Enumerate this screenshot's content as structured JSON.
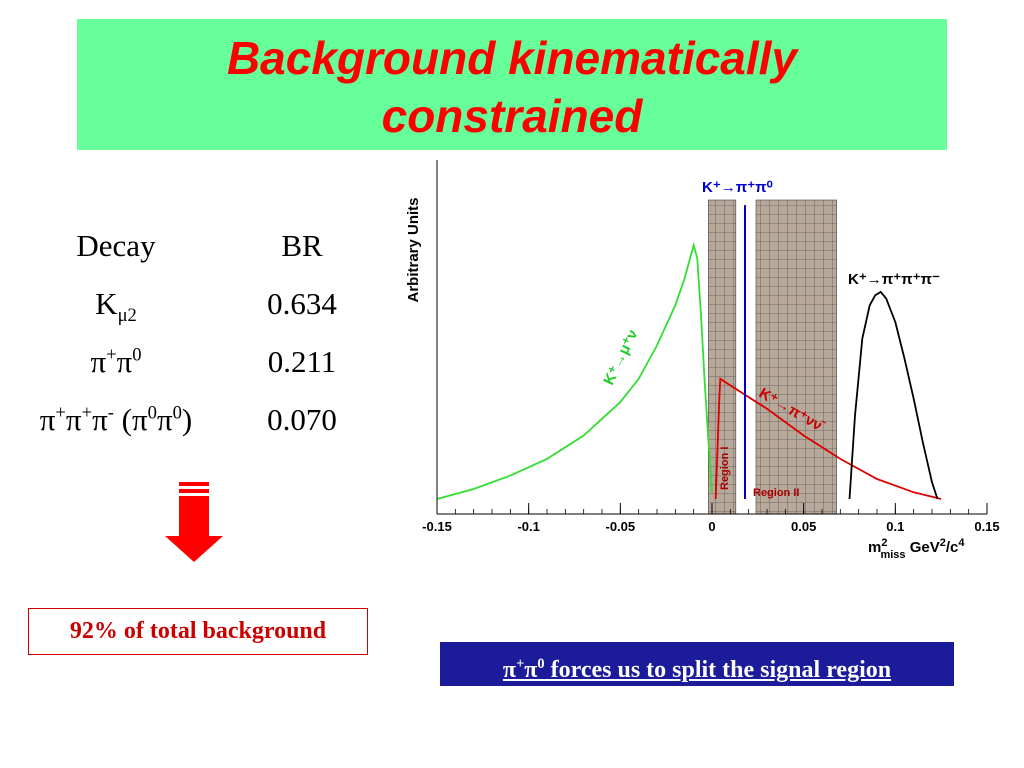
{
  "title": {
    "line1": "Background kinematically",
    "line2": "constrained"
  },
  "br_table": {
    "headers": [
      "Decay",
      "BR"
    ],
    "rows": [
      {
        "decay": "Kμ2",
        "br": "0.634"
      },
      {
        "decay": "π+π0",
        "br": "0.211"
      },
      {
        "decay": "π+π+π- (π0π0)",
        "br": "0.070"
      }
    ]
  },
  "background_note": "92% of total background",
  "signal_note": "π+π0 forces us to split the signal region",
  "colors": {
    "title_bg": "#66ff99",
    "title_text": "#ff0000",
    "note_red": "#cc0000",
    "signal_bg": "#1c1c9a",
    "kmu2": "#33dd33",
    "kpinunu": "#dd0000",
    "pipi0": "#0000cc",
    "k3pi": "#000000",
    "region_fill": "#b8a89a"
  },
  "chart_data": {
    "type": "line",
    "ylabel": "Arbitrary Units",
    "xlabel": "m²miss GeV²/c⁴",
    "xlim": [
      -0.15,
      0.15
    ],
    "x_ticks": [
      "-0.15",
      "-0.1",
      "-0.05",
      "0",
      "0.05",
      "0.1",
      "0.15"
    ],
    "tick_values": [
      -0.15,
      -0.1,
      -0.05,
      0,
      0.05,
      0.1,
      0.15
    ],
    "ylim": [
      0,
      1
    ],
    "grid": false,
    "regions": [
      {
        "label": "Region I",
        "x": [
          -0.002,
          0.013
        ]
      },
      {
        "label": "Region II",
        "x": [
          0.024,
          0.068
        ]
      }
    ],
    "series": [
      {
        "name": "K+→μ+ν",
        "x": [
          -0.15,
          -0.13,
          -0.11,
          -0.09,
          -0.07,
          -0.05,
          -0.04,
          -0.03,
          -0.02,
          -0.015,
          -0.012,
          -0.01,
          -0.008,
          -0.006,
          -0.004,
          -0.002,
          0.0
        ],
        "y": [
          0.0,
          0.03,
          0.07,
          0.12,
          0.19,
          0.29,
          0.36,
          0.46,
          0.58,
          0.66,
          0.72,
          0.76,
          0.72,
          0.55,
          0.35,
          0.18,
          0.02
        ]
      },
      {
        "name": "K+→π+νν̄",
        "x": [
          0.002,
          0.004,
          0.0045,
          0.01,
          0.03,
          0.05,
          0.07,
          0.09,
          0.11,
          0.125
        ],
        "y": [
          0.0,
          0.3,
          0.36,
          0.34,
          0.27,
          0.19,
          0.12,
          0.06,
          0.02,
          0.0
        ]
      },
      {
        "name": "K+→π+π+π-",
        "x": [
          0.075,
          0.078,
          0.082,
          0.086,
          0.089,
          0.092,
          0.095,
          0.1,
          0.105,
          0.11,
          0.115,
          0.12,
          0.123
        ],
        "y": [
          0.0,
          0.25,
          0.48,
          0.58,
          0.61,
          0.62,
          0.6,
          0.53,
          0.42,
          0.3,
          0.17,
          0.05,
          0.0
        ]
      },
      {
        "name": "K+→π+π0",
        "x": [
          0.018,
          0.018
        ],
        "y": [
          0.0,
          0.88
        ]
      }
    ],
    "labels": {
      "pipi0": "K⁺→π⁺π⁰",
      "k3pi": "K⁺→π⁺π⁺π⁻",
      "kmu2": "K⁺→μ⁺ν",
      "kpinunu": "K⁺→π⁺νν̄"
    }
  }
}
